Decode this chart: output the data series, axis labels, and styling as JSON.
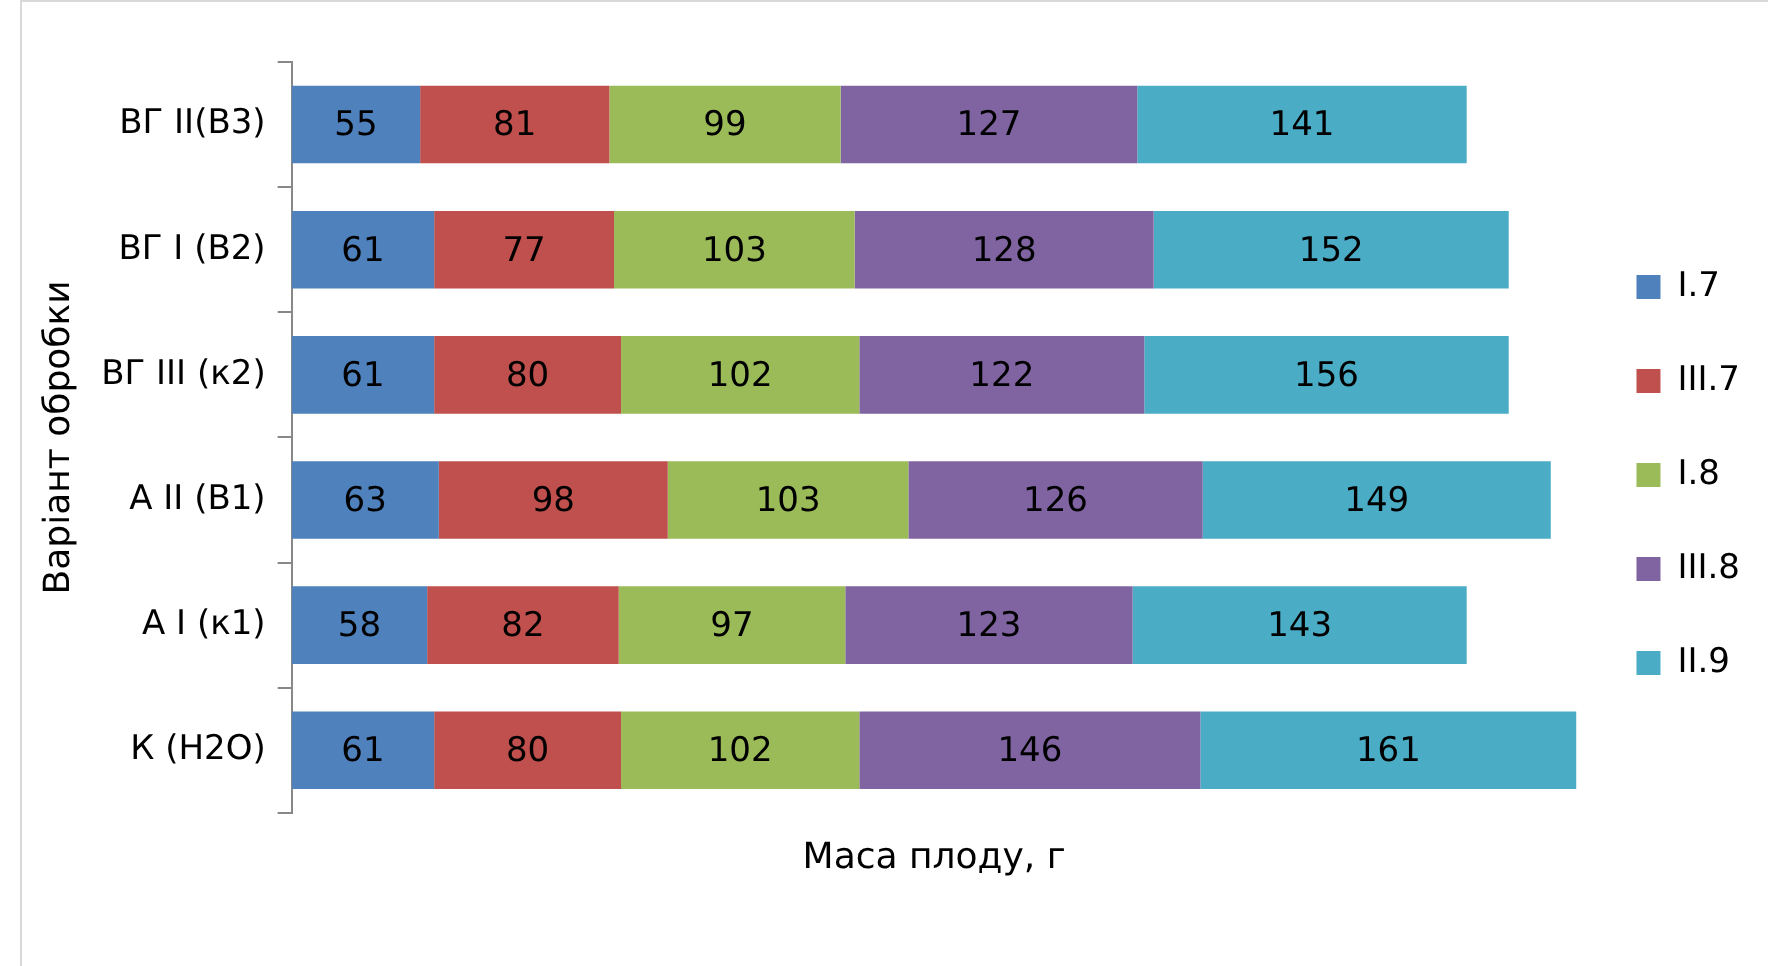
{
  "chart_data": {
    "type": "bar",
    "orientation": "horizontal",
    "stacked": true,
    "data_labels": true,
    "legend": "right",
    "grid": false,
    "xlabel": "Маса плоду, г",
    "ylabel": "Варіант обробки",
    "categories": [
      "ВГ II(В3)",
      "ВГ I (В2)",
      "ВГ III (к2)",
      "А II (В1)",
      "А I (к1)",
      "К (Н2О)"
    ],
    "series": [
      {
        "name": "I.7",
        "color": "#4f81bd",
        "values": [
          55,
          61,
          61,
          63,
          58,
          61
        ]
      },
      {
        "name": "III.7",
        "color": "#c0504d",
        "values": [
          81,
          77,
          80,
          98,
          82,
          80
        ]
      },
      {
        "name": "I.8",
        "color": "#9bbb59",
        "values": [
          99,
          103,
          102,
          103,
          97,
          102
        ]
      },
      {
        "name": "III.8",
        "color": "#8064a2",
        "values": [
          127,
          128,
          122,
          126,
          123,
          146
        ]
      },
      {
        "name": "II.9",
        "color": "#4bacc6",
        "values": [
          141,
          152,
          156,
          149,
          143,
          161
        ]
      }
    ]
  }
}
